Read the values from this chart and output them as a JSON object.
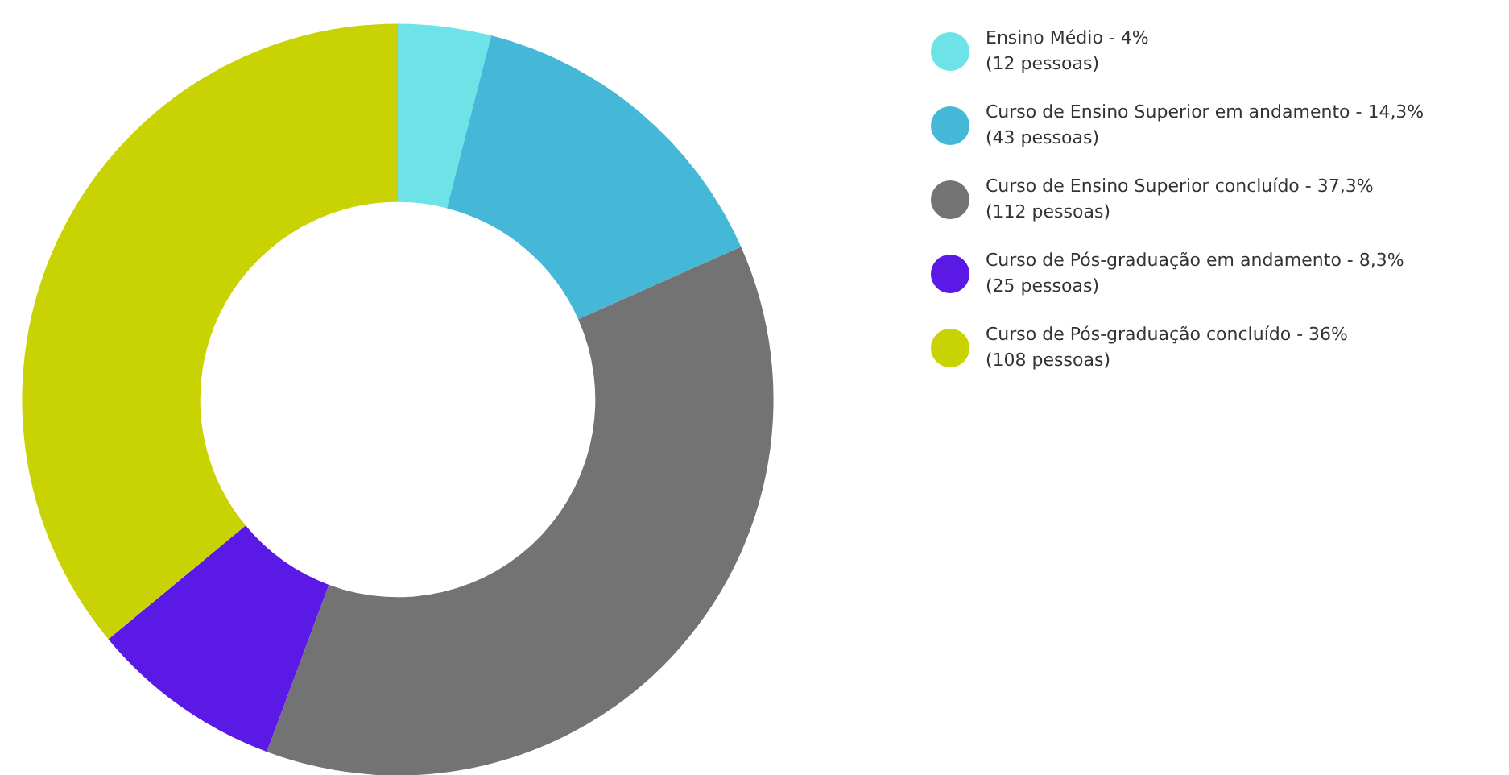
{
  "chart_data": {
    "type": "donut",
    "categories": [
      "Ensino Médio - 4%\n(12 pessoas)",
      "Curso de Ensino Superior em andamento - 14,3%\n(43 pessoas)",
      "Curso de Ensino Superior concluído - 37,3%\n(112 pessoas)",
      "Curso de Pós-graduação em andamento - 8,3%\n(25 pessoas)",
      "Curso de Pós-graduação concluído - 36%\n(108 pessoas)"
    ],
    "values": [
      12,
      43,
      112,
      25,
      108
    ],
    "colors": [
      "#6de3e8",
      "#45b8d8",
      "#737373",
      "#5b19e6",
      "#c9d304"
    ],
    "legend": "top right"
  }
}
